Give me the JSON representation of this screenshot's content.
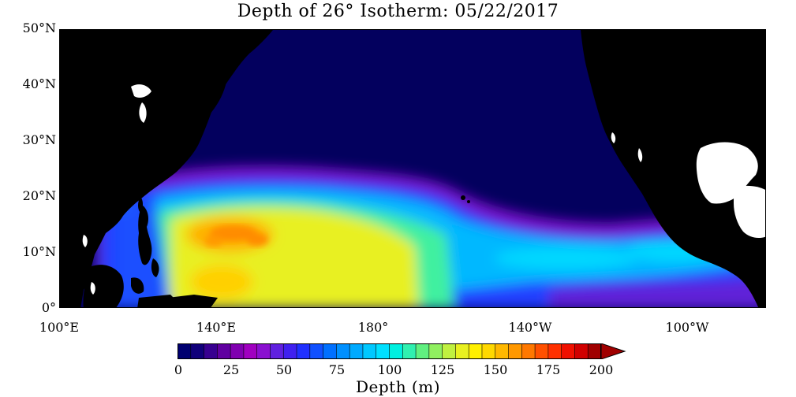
{
  "title": "Depth of 26° Isotherm: 05/22/2017",
  "latitude_labels": [
    "50°N",
    "40°N",
    "30°N",
    "20°N",
    "10°N",
    "0°"
  ],
  "longitude_labels": [
    "100°E",
    "140°E",
    "180°",
    "140°W",
    "100°W"
  ],
  "colorbar": {
    "title": "Depth (m)",
    "tick_labels": [
      "0",
      "25",
      "50",
      "75",
      "100",
      "125",
      "150",
      "175",
      "200"
    ],
    "colors": [
      "#000070",
      "#10007a",
      "#380090",
      "#6000a0",
      "#8000b0",
      "#a000c0",
      "#8a10d0",
      "#6020e0",
      "#4020f0",
      "#2030ff",
      "#1050ff",
      "#0070ff",
      "#0090ff",
      "#00aaff",
      "#00c8ff",
      "#00e0ff",
      "#00f0e0",
      "#30f0b0",
      "#60f080",
      "#90f060",
      "#c0f040",
      "#e8f020",
      "#fff000",
      "#ffd800",
      "#ffb800",
      "#ff9800",
      "#ff7800",
      "#ff5000",
      "#ff3000",
      "#f01000",
      "#d00000",
      "#a00000"
    ]
  },
  "map": {
    "region": "Pacific Ocean, 0° to 50°N, 100°E to 80°W",
    "colors": {
      "land": "#000000",
      "no_data": "#ffffff",
      "shallow": "#03005e",
      "deep": "#ff8c00"
    }
  }
}
